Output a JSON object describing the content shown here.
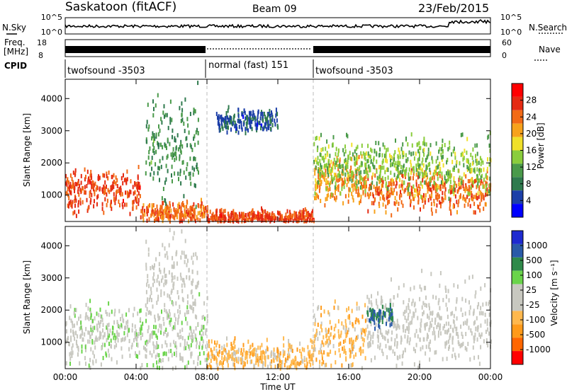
{
  "header": {
    "station": "Saskatoon (fitACF)",
    "beam": "Beam 09",
    "date": "23/Feb/2015"
  },
  "noise_panel": {
    "left_label": "N.Sky",
    "left_ticks": [
      "10^5",
      "10^0"
    ],
    "right_ticks": [
      "10^5",
      "10^0"
    ],
    "right_label": "N.Search"
  },
  "freq_panel": {
    "left_label_1": "Freq.",
    "left_label_2": "[MHz]",
    "left_ticks": [
      "18",
      "8"
    ],
    "right_ticks": [
      "60",
      "0"
    ],
    "right_label": "Nave"
  },
  "cpid": {
    "label": "CPID",
    "segments": [
      {
        "name": "twofsound -3503",
        "start_hour": 0,
        "end_hour": 8
      },
      {
        "name": "normal (fast) 151",
        "start_hour": 8,
        "end_hour": 14
      },
      {
        "name": "twofsound -3503",
        "start_hour": 14,
        "end_hour": 24
      }
    ]
  },
  "colors": {
    "power": [
      "#0000ff",
      "#1c3fa8",
      "#2f7a4e",
      "#4a9a4a",
      "#8acd3c",
      "#f0e02a",
      "#f7a21c",
      "#f26a16",
      "#e52a12",
      "#ff0000"
    ],
    "velocity": [
      "#ff0000",
      "#ff6600",
      "#ff9a1a",
      "#ffb84d",
      "#c8c8c0",
      "#c8c8c0",
      "#6ad44a",
      "#2f8a4a",
      "#2a5aa8",
      "#1e2ad0"
    ]
  },
  "chart_data": [
    {
      "type": "heatmap",
      "panel": "power",
      "xlabel": "",
      "ylabel": "Slant Range [km]",
      "xlim": [
        0,
        24
      ],
      "ylim": [
        180,
        4600
      ],
      "yticks": [
        1000,
        2000,
        3000,
        4000
      ],
      "colorbar": {
        "label": "Power [dB]",
        "ticks": [
          "28",
          "24",
          "20",
          "16",
          "12",
          "8",
          "4"
        ],
        "range": [
          0,
          32
        ]
      },
      "bands": [
        {
          "t0": 0,
          "t1": 4.2,
          "center": 1150,
          "width": 650,
          "value": 26
        },
        {
          "t0": 4.2,
          "t1": 8,
          "center": 450,
          "width": 300,
          "value": 24
        },
        {
          "t0": 8,
          "t1": 14,
          "center": 300,
          "width": 220,
          "value": 26
        },
        {
          "t0": 14,
          "t1": 17,
          "center": 1450,
          "width": 700,
          "value": 22
        },
        {
          "t0": 17,
          "t1": 24,
          "center": 1100,
          "width": 600,
          "value": 24
        },
        {
          "t0": 4.5,
          "t1": 7.5,
          "center": 2500,
          "width": 1500,
          "value": 10
        },
        {
          "t0": 8.5,
          "t1": 12,
          "center": 3300,
          "width": 350,
          "value": 6
        },
        {
          "t0": 14,
          "t1": 24,
          "center": 1900,
          "width": 800,
          "value": 14
        }
      ]
    },
    {
      "type": "heatmap",
      "panel": "velocity",
      "xlabel": "Time UT",
      "ylabel": "Slant Range [km]",
      "xlim": [
        0,
        24
      ],
      "ylim": [
        180,
        4600
      ],
      "yticks": [
        1000,
        2000,
        3000,
        4000
      ],
      "xticks": [
        "00:00",
        "04:00",
        "08:00",
        "12:00",
        "16:00",
        "20:00",
        "00:00"
      ],
      "colorbar": {
        "label": "Velocity [m s⁻¹]",
        "ticks": [
          "1000",
          "500",
          "100",
          "25",
          "-25",
          "-100",
          "-500",
          "-1000"
        ],
        "range": [
          -1000,
          1000
        ]
      },
      "bands": [
        {
          "t0": 0,
          "t1": 4.2,
          "center": 1250,
          "width": 900,
          "value": 100
        },
        {
          "t0": 4.2,
          "t1": 8,
          "center": 900,
          "width": 1200,
          "value": 150
        },
        {
          "t0": 8,
          "t1": 14,
          "center": 500,
          "width": 500,
          "value": -300
        },
        {
          "t0": 14,
          "t1": 17,
          "center": 1200,
          "width": 1000,
          "value": -300
        },
        {
          "t0": 17,
          "t1": 24,
          "center": 1500,
          "width": 1400,
          "value": 0
        },
        {
          "t0": 17,
          "t1": 18.5,
          "center": 1800,
          "width": 300,
          "value": 600
        },
        {
          "t0": 4.5,
          "t1": 7.5,
          "center": 2700,
          "width": 1400,
          "value": 0
        }
      ]
    }
  ]
}
